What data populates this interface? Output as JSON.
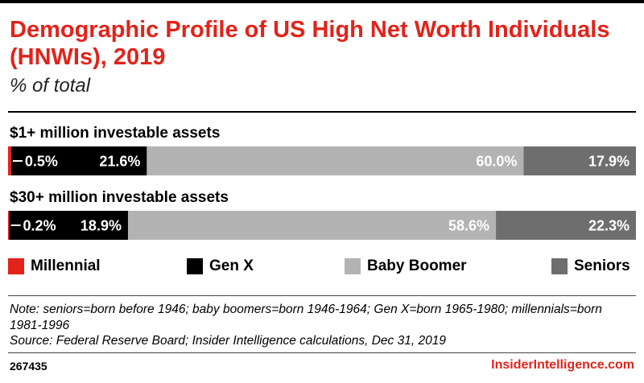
{
  "title": "Demographic Profile of US High Net Worth Individuals (HNWIs), 2019",
  "subtitle": "% of total",
  "chart_data": {
    "type": "bar",
    "stacked": true,
    "orientation": "horizontal",
    "unit": "%",
    "categories": [
      "$1+ million investable assets",
      "$30+ million investable assets"
    ],
    "series": [
      {
        "name": "Millennial",
        "color": "#e2231a",
        "values": [
          0.5,
          0.2
        ],
        "labels": [
          "0.5%",
          "0.2%"
        ]
      },
      {
        "name": "Gen X",
        "color": "#000000",
        "values": [
          21.6,
          18.9
        ],
        "labels": [
          "21.6%",
          "18.9%"
        ]
      },
      {
        "name": "Baby Boomer",
        "color": "#b3b3b3",
        "values": [
          60.0,
          58.6
        ],
        "labels": [
          "60.0%",
          "58.6%"
        ]
      },
      {
        "name": "Seniors",
        "color": "#6e6e6e",
        "values": [
          17.9,
          22.3
        ],
        "labels": [
          "17.9%",
          "22.3%"
        ]
      }
    ],
    "xlim": [
      0,
      100
    ],
    "legend_position": "bottom"
  },
  "note": "Note: seniors=born before 1946; baby boomers=born 1946-1964; Gen X=born 1965-1980; millennials=born 1981-1996",
  "source": "Source: Federal Reserve Board; Insider Intelligence calculations, Dec 31, 2019",
  "footer": {
    "chart_id": "267435",
    "brand": "InsiderIntelligence.com"
  }
}
